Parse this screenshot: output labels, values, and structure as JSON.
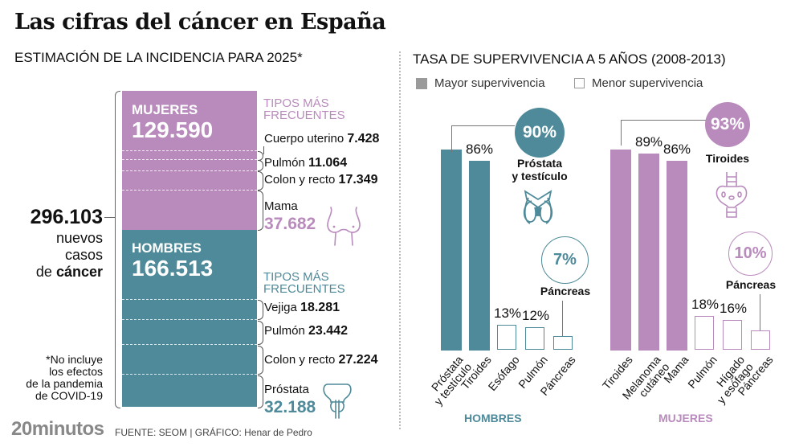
{
  "title": "Las cifras del cáncer en España",
  "left": {
    "heading": "ESTIMACIÓN DE LA INCIDENCIA PARA 2025*",
    "total": {
      "value": "296.103",
      "line1": "nuevos",
      "line2": "casos",
      "line3_prefix": "de ",
      "line3_bold": "cáncer"
    },
    "note": [
      "*No incluye",
      "los efectos",
      "de la pandemia",
      "de COVID-19"
    ],
    "mujeres": {
      "label": "MUJERES",
      "value": "129.590",
      "freq_title_1": "TIPOS MÁS",
      "freq_title_2": "FRECUENTES",
      "color": "#b98bbd",
      "types": [
        {
          "name": "Cuerpo uterino",
          "value": "7.428"
        },
        {
          "name": "Pulmón",
          "value": "11.064"
        },
        {
          "name": "Colon y recto",
          "value": "17.349"
        },
        {
          "name": "Mama",
          "value": "37.682"
        }
      ]
    },
    "hombres": {
      "label": "HOMBRES",
      "value": "166.513",
      "freq_title_1": "TIPOS MÁS",
      "freq_title_2": "FRECUENTES",
      "color": "#4e8a99",
      "types": [
        {
          "name": "Vejiga",
          "value": "18.281"
        },
        {
          "name": "Pulmón",
          "value": "23.442"
        },
        {
          "name": "Colon y recto",
          "value": "27.224"
        },
        {
          "name": "Próstata",
          "value": "32.188"
        }
      ]
    }
  },
  "right": {
    "heading": "TASA DE SUPERVIVENCIA A 5 AÑOS (2008-2013)",
    "legend": {
      "mayor": "Mayor supervivencia",
      "menor": "Menor supervivencia",
      "mayor_color": "#9a9a9a",
      "menor_color": "#9a9a9a"
    }
  },
  "chart_data": {
    "type": "bar",
    "title": "TASA DE SUPERVIVENCIA A 5 AÑOS (2008-2013)",
    "ylabel": "%",
    "ylim": [
      0,
      100
    ],
    "groups": [
      {
        "name": "HOMBRES",
        "color": "#4e8a99",
        "categories": [
          "Próstata y testículo",
          "Tiroides",
          "Esófago",
          "Pulmón",
          "Páncreas"
        ],
        "values": [
          90,
          86,
          13,
          12,
          7
        ],
        "kind": [
          "mayor",
          "mayor",
          "menor",
          "menor",
          "menor"
        ],
        "labels": [
          "90%",
          "86%",
          "13%",
          "12%",
          "7%"
        ],
        "highlight_high": {
          "label": "90%",
          "organ": "Próstata y testículo",
          "organ_line1": "Próstata",
          "organ_line2": "y testículo"
        },
        "highlight_low": {
          "label": "7%",
          "organ": "Páncreas"
        }
      },
      {
        "name": "MUJERES",
        "color": "#b98bbd",
        "categories": [
          "Tiroides",
          "Melanoma cutáneo",
          "Mama",
          "Pulmón",
          "Hígado y esófago",
          "Páncreas"
        ],
        "values": [
          93,
          89,
          86,
          18,
          16,
          10
        ],
        "kind": [
          "mayor",
          "mayor",
          "mayor",
          "menor",
          "menor",
          "menor"
        ],
        "labels": [
          "93%",
          "89%",
          "86%",
          "18%",
          "16%",
          "10%"
        ],
        "highlight_high": {
          "label": "93%",
          "organ": "Tiroides"
        },
        "highlight_low": {
          "label": "10%",
          "organ": "Páncreas"
        }
      }
    ]
  },
  "footer": {
    "brand": "20minutos",
    "source": "FUENTE: SEOM  |  GRÁFICO: Henar de Pedro"
  }
}
